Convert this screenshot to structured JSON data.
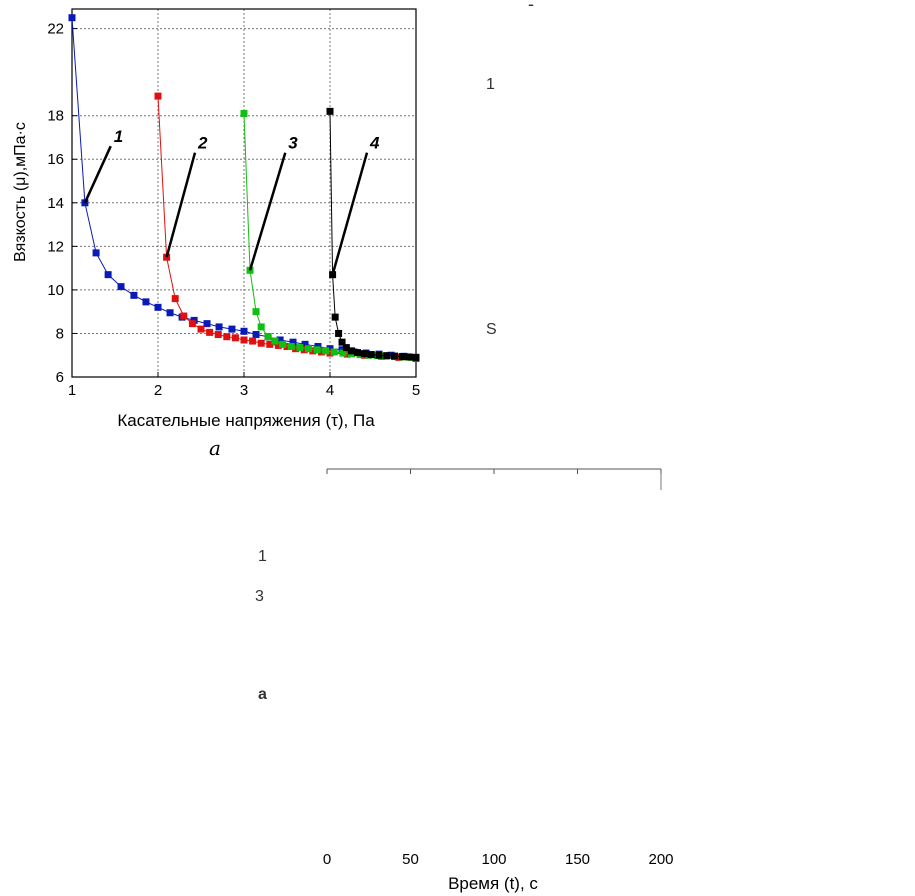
{
  "chart_data": [
    {
      "type": "scatter",
      "title": "",
      "xlabel": "Касательные напряжения (τ), Па",
      "ylabel": "Вязкость  (μ),мПа·с",
      "xlim": [
        1,
        5
      ],
      "ylim": [
        6,
        23
      ],
      "xticks": [
        1,
        2,
        3,
        4,
        5
      ],
      "yticks": [
        6,
        8,
        10,
        12,
        14,
        16,
        18,
        22
      ],
      "grid": true,
      "series": [
        {
          "name": "1",
          "color": "#0a1ab4",
          "x": [
            1.0,
            1.15,
            1.28,
            1.42,
            1.57,
            1.72,
            1.86,
            2.0,
            2.14,
            2.28,
            2.42,
            2.57,
            2.71,
            2.86,
            3.0,
            3.14,
            3.28,
            3.42,
            3.57,
            3.71,
            3.86,
            4.0,
            4.14,
            4.28,
            4.42,
            4.57,
            4.71,
            4.86,
            5.0
          ],
          "y": [
            22.5,
            14.0,
            11.7,
            10.7,
            10.15,
            9.75,
            9.45,
            9.2,
            8.95,
            8.75,
            8.6,
            8.45,
            8.3,
            8.2,
            8.1,
            7.95,
            7.85,
            7.7,
            7.6,
            7.5,
            7.4,
            7.3,
            7.25,
            7.15,
            7.1,
            7.05,
            7.0,
            6.95,
            6.9
          ]
        },
        {
          "name": "2",
          "color": "#e01010",
          "x": [
            2.0,
            2.1,
            2.2,
            2.3,
            2.4,
            2.5,
            2.6,
            2.7,
            2.8,
            2.9,
            3.0,
            3.1,
            3.2,
            3.3,
            3.4,
            3.5,
            3.6,
            3.7,
            3.8,
            3.9,
            4.0,
            4.2,
            4.4,
            4.6,
            4.8,
            5.0
          ],
          "y": [
            18.9,
            11.5,
            9.6,
            8.8,
            8.45,
            8.2,
            8.05,
            7.95,
            7.85,
            7.8,
            7.7,
            7.65,
            7.55,
            7.5,
            7.45,
            7.4,
            7.3,
            7.25,
            7.2,
            7.15,
            7.1,
            7.05,
            7.0,
            6.95,
            6.9,
            6.85
          ]
        },
        {
          "name": "3",
          "color": "#10c010",
          "x": [
            3.0,
            3.07,
            3.14,
            3.2,
            3.28,
            3.36,
            3.45,
            3.55,
            3.65,
            3.75,
            3.85,
            3.95,
            4.05,
            4.15,
            4.25,
            4.35,
            4.45,
            4.55,
            4.65,
            4.75,
            4.85,
            4.95
          ],
          "y": [
            18.1,
            10.9,
            9.0,
            8.3,
            7.85,
            7.65,
            7.5,
            7.4,
            7.35,
            7.3,
            7.25,
            7.2,
            7.15,
            7.1,
            7.07,
            7.03,
            7.0,
            6.98,
            6.96,
            6.94,
            6.92,
            6.9
          ]
        },
        {
          "name": "4",
          "color": "#000000",
          "x": [
            4.0,
            4.03,
            4.06,
            4.1,
            4.14,
            4.19,
            4.25,
            4.32,
            4.4,
            4.48,
            4.57,
            4.66,
            4.75,
            4.84,
            4.92,
            5.0
          ],
          "y": [
            18.2,
            10.7,
            8.75,
            8.0,
            7.6,
            7.35,
            7.2,
            7.12,
            7.07,
            7.03,
            7.0,
            6.98,
            6.96,
            6.94,
            6.92,
            6.9
          ]
        }
      ],
      "annotations": [
        "1",
        "2",
        "3",
        "4"
      ]
    },
    {
      "type": "line",
      "title": "",
      "xlabel": "Время (t), с",
      "ylabel": "",
      "xlim": [
        0,
        200
      ],
      "xticks": [
        "0",
        "50",
        "100",
        "150",
        "200"
      ],
      "series": []
    }
  ],
  "panel_label": "a",
  "fragments": [
    "-",
    "1",
    "S",
    "1",
    "3",
    "a"
  ]
}
